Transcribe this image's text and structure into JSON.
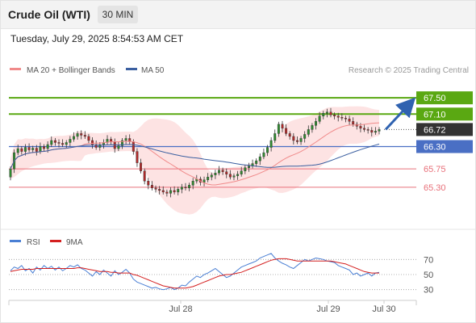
{
  "header": {
    "title": "Crude Oil (WTI)",
    "timeframe": "30 MIN",
    "timestamp": "Tuesday, July 29, 2025 8:54:53 AM CET"
  },
  "legend": {
    "ma20_label": "MA 20 + Bollinger Bands",
    "ma50_label": "MA 50",
    "source": "Research © 2025 Trading Central",
    "rsi_label": "RSI",
    "rsi_ma_label": "9MA"
  },
  "colors": {
    "resistance": "#5aa812",
    "support": "#e8707a",
    "pivot": "#4a6fc4",
    "last_price": "#333333",
    "ma20": "#f08a8a",
    "ma50": "#3b5fa0",
    "bollinger_fill": "#fde3e3",
    "arrow": "#2f62b0",
    "candle_up": "#2f8a2f",
    "candle_down": "#b02a2a",
    "rsi_line": "#4a7fd4",
    "rsi_ma_line": "#d42020"
  },
  "chart_data": [
    {
      "type": "candlestick",
      "title": "Crude Oil (WTI)",
      "timeframe": "30 MIN",
      "x_ticks": [
        "Jul 28",
        "Jul 29",
        "Jul 30"
      ],
      "ylim": [
        64.7,
        68.0
      ],
      "levels": [
        {
          "value": 67.5,
          "label": "67.50",
          "role": "resistance"
        },
        {
          "value": 67.1,
          "label": "67.10",
          "role": "resistance"
        },
        {
          "value": 66.72,
          "label": "66.72",
          "role": "last_price"
        },
        {
          "value": 66.3,
          "label": "66.30",
          "role": "pivot"
        },
        {
          "value": 65.75,
          "label": "65.75",
          "role": "support"
        },
        {
          "value": 65.3,
          "label": "65.30",
          "role": "support"
        }
      ],
      "arrow": {
        "from": 66.72,
        "to": 67.5,
        "direction": "up"
      },
      "close": [
        65.75,
        66.15,
        66.25,
        66.18,
        66.28,
        66.22,
        66.26,
        66.18,
        66.3,
        66.25,
        66.35,
        66.45,
        66.4,
        66.38,
        66.35,
        66.4,
        66.48,
        66.55,
        66.62,
        66.58,
        66.55,
        66.45,
        66.35,
        66.28,
        66.35,
        66.4,
        66.48,
        66.42,
        66.25,
        66.32,
        66.45,
        66.5,
        66.42,
        66.18,
        65.9,
        65.7,
        65.45,
        65.35,
        65.28,
        65.25,
        65.22,
        65.18,
        65.15,
        65.22,
        65.18,
        65.25,
        65.3,
        65.28,
        65.35,
        65.45,
        65.5,
        65.42,
        65.48,
        65.55,
        65.6,
        65.65,
        65.72,
        65.68,
        65.62,
        65.55,
        65.58,
        65.62,
        65.7,
        65.78,
        65.82,
        65.88,
        65.95,
        66.05,
        66.15,
        66.28,
        66.45,
        66.62,
        66.85,
        66.75,
        66.62,
        66.55,
        66.45,
        66.42,
        66.5,
        66.6,
        66.72,
        66.82,
        66.92,
        67.05,
        67.12,
        67.15,
        67.08,
        67.05,
        67.02,
        67.0,
        66.98,
        66.92,
        66.85,
        66.8,
        66.75,
        66.72,
        66.7,
        66.65,
        66.68,
        66.72
      ]
    },
    {
      "type": "line",
      "title": "RSI",
      "y_ticks": [
        70,
        50,
        30
      ],
      "ylim": [
        20,
        80
      ],
      "series": [
        {
          "name": "RSI",
          "values": [
            55,
            60,
            58,
            62,
            55,
            58,
            52,
            60,
            56,
            62,
            58,
            61,
            56,
            60,
            55,
            58,
            62,
            60,
            63,
            58,
            56,
            52,
            48,
            54,
            50,
            56,
            52,
            48,
            55,
            50,
            53,
            57,
            52,
            44,
            40,
            38,
            36,
            34,
            32,
            33,
            31,
            30,
            31,
            33,
            30,
            32,
            36,
            35,
            40,
            44,
            48,
            46,
            50,
            52,
            55,
            58,
            54,
            50,
            46,
            48,
            52,
            56,
            60,
            62,
            64,
            66,
            68,
            72,
            74,
            76,
            78,
            72,
            68,
            65,
            63,
            60,
            58,
            62,
            66,
            70,
            68,
            70,
            72,
            71,
            70,
            68,
            67,
            66,
            62,
            60,
            58,
            56,
            50,
            52,
            48,
            50,
            52,
            48,
            52,
            53
          ]
        },
        {
          "name": "9MA",
          "values": [
            54,
            55,
            56,
            57,
            57,
            57,
            57,
            58,
            58,
            58,
            58,
            58,
            58,
            58,
            58,
            58,
            58,
            58,
            59,
            59,
            58,
            57,
            56,
            55,
            54,
            54,
            54,
            53,
            53,
            52,
            52,
            52,
            52,
            50,
            49,
            47,
            45,
            43,
            41,
            39,
            37,
            35,
            34,
            33,
            32,
            32,
            32,
            32,
            33,
            34,
            36,
            38,
            40,
            42,
            44,
            46,
            48,
            49,
            50,
            50,
            51,
            52,
            53,
            55,
            57,
            59,
            61,
            63,
            65,
            67,
            69,
            70,
            71,
            71,
            71,
            70,
            69,
            68,
            68,
            68,
            68,
            68,
            68,
            68,
            68,
            68,
            68,
            67,
            66,
            65,
            64,
            62,
            60,
            58,
            56,
            54,
            53,
            52,
            52,
            52
          ]
        }
      ]
    }
  ]
}
